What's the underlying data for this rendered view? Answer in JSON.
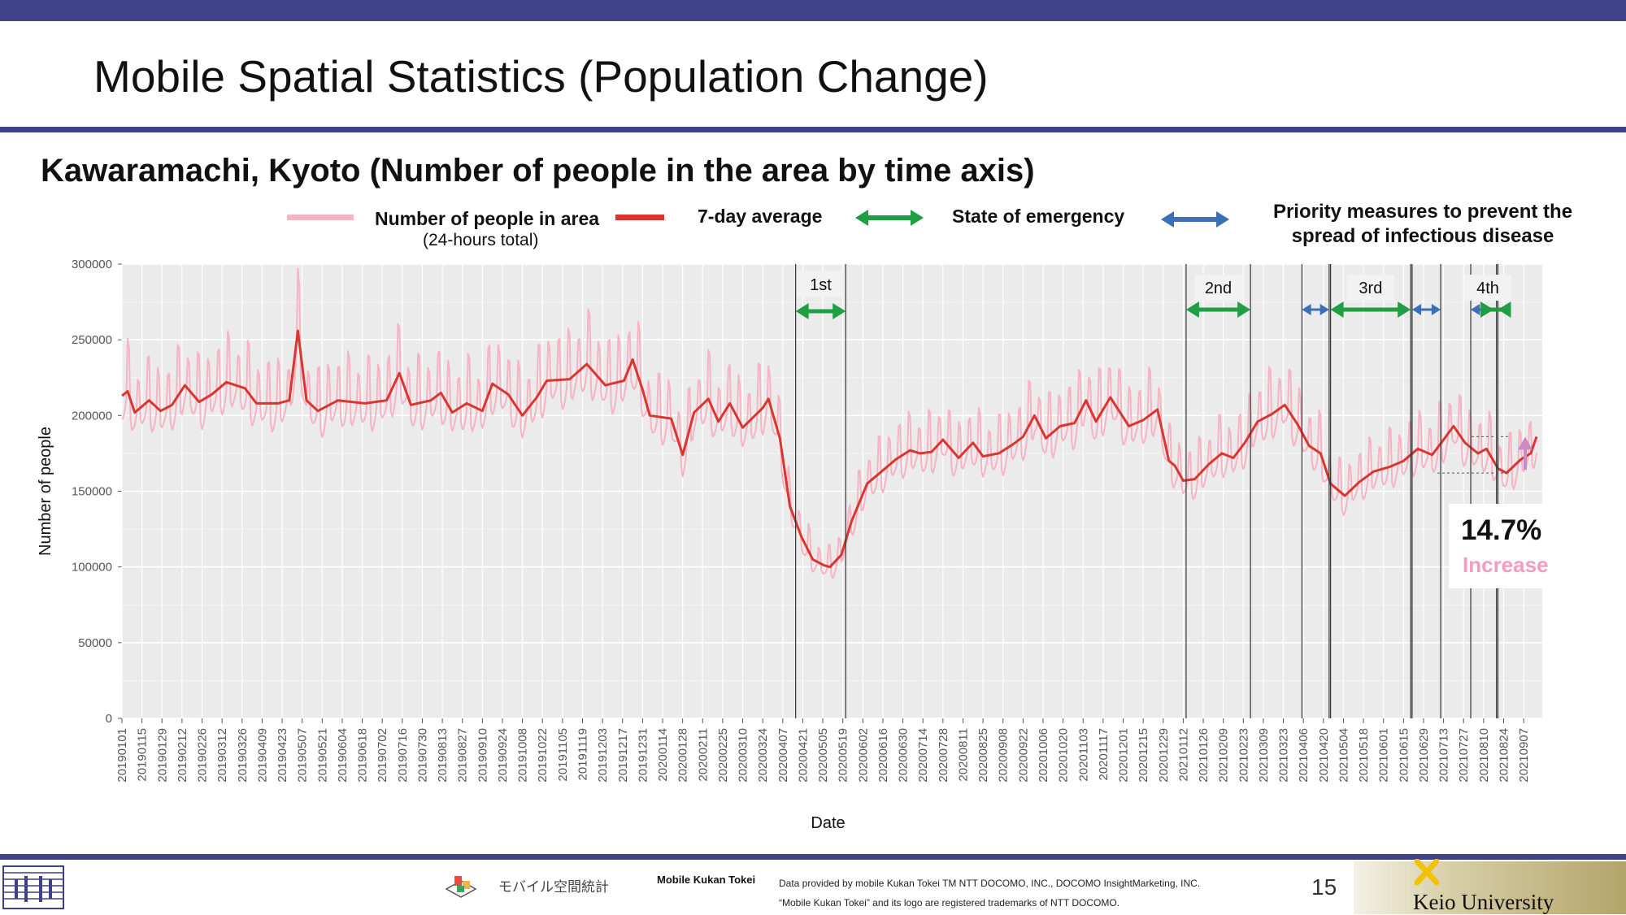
{
  "slide": {
    "title": "Mobile Spatial Statistics (Population Change)",
    "subtitle": "Kawaramachi, Kyoto (Number of people in the area by time axis)",
    "page_number": "15"
  },
  "legend": {
    "raw_label": "Number of people in area",
    "raw_sub": "(24-hours total)",
    "avg_label": "7-day average",
    "emergency_label": "State of emergency",
    "priority_label_1": "Priority measures to prevent the",
    "priority_label_2": "spread of infectious disease"
  },
  "annotation": {
    "percent": "14.7%",
    "word": "Increase"
  },
  "footer": {
    "brand_text": "モバイル空間統計",
    "mk_label": "Mobile Kukan Tokei",
    "note_1": "Data provided by mobile Kukan Tokei TM NTT DOCOMO, INC., DOCOMO InsightMarketing, INC.",
    "note_2": "“Mobile Kukan Tokei” and its logo are registered trademarks of NTT DOCOMO.",
    "university": "Keio University"
  },
  "colors": {
    "header_bar": "#3f4189",
    "raw_series": "#f6b3c4",
    "avg_series": "#d9362f",
    "emergency": "#1f9e44",
    "priority": "#3b6fb6",
    "panel_bg": "#ebebeb",
    "increase_arrow": "#c98ac7"
  },
  "chart_data": {
    "type": "line",
    "xlabel": "Date",
    "ylabel": "Number of people",
    "ylim": [
      0,
      300000
    ],
    "yticks": [
      0,
      50000,
      100000,
      150000,
      200000,
      250000,
      300000
    ],
    "ytick_labels": [
      "0",
      "50000",
      "100000",
      "150000",
      "200000",
      "250000",
      "300000"
    ],
    "x_start": "2019-01-01",
    "x_end": "2021-09-20",
    "grid": true,
    "legend_position": "top",
    "xtick_labels": [
      "20190101",
      "20190115",
      "20190129",
      "20190212",
      "20190226",
      "20190312",
      "20190326",
      "20190409",
      "20190423",
      "20190507",
      "20190521",
      "20190604",
      "20190618",
      "20190702",
      "20190716",
      "20190730",
      "20190813",
      "20190827",
      "20190910",
      "20190924",
      "20191008",
      "20191022",
      "20191105",
      "20191119",
      "20191203",
      "20191217",
      "20191231",
      "20200114",
      "20200128",
      "20200211",
      "20200225",
      "20200310",
      "20200324",
      "20200407",
      "20200421",
      "20200505",
      "20200519",
      "20200602",
      "20200616",
      "20200630",
      "20200714",
      "20200728",
      "20200811",
      "20200825",
      "20200908",
      "20200922",
      "20201006",
      "20201020",
      "20201103",
      "20201117",
      "20201201",
      "20201215",
      "20201229",
      "20210112",
      "20210126",
      "20210209",
      "20210223",
      "20210309",
      "20210323",
      "20210406",
      "20210420",
      "20210504",
      "20210518",
      "20210601",
      "20210615",
      "20210629",
      "20210713",
      "20210727",
      "20210810",
      "20210824",
      "20210907"
    ],
    "series": [
      {
        "name": "7-day average",
        "points": [
          [
            "2019-01-01",
            213000
          ],
          [
            "2019-01-05",
            216000
          ],
          [
            "2019-01-10",
            202000
          ],
          [
            "2019-01-20",
            210000
          ],
          [
            "2019-01-28",
            203000
          ],
          [
            "2019-02-05",
            207000
          ],
          [
            "2019-02-14",
            220000
          ],
          [
            "2019-02-24",
            209000
          ],
          [
            "2019-03-05",
            214000
          ],
          [
            "2019-03-15",
            222000
          ],
          [
            "2019-03-28",
            218000
          ],
          [
            "2019-04-05",
            208000
          ],
          [
            "2019-04-20",
            208000
          ],
          [
            "2019-04-28",
            210000
          ],
          [
            "2019-05-04",
            256000
          ],
          [
            "2019-05-10",
            210000
          ],
          [
            "2019-05-18",
            203000
          ],
          [
            "2019-06-01",
            210000
          ],
          [
            "2019-06-20",
            208000
          ],
          [
            "2019-07-05",
            210000
          ],
          [
            "2019-07-14",
            228000
          ],
          [
            "2019-07-22",
            207000
          ],
          [
            "2019-08-05",
            210000
          ],
          [
            "2019-08-12",
            215000
          ],
          [
            "2019-08-20",
            202000
          ],
          [
            "2019-08-30",
            208000
          ],
          [
            "2019-09-10",
            203000
          ],
          [
            "2019-09-17",
            221000
          ],
          [
            "2019-09-28",
            214000
          ],
          [
            "2019-10-08",
            200000
          ],
          [
            "2019-10-18",
            212000
          ],
          [
            "2019-10-25",
            223000
          ],
          [
            "2019-11-10",
            224000
          ],
          [
            "2019-11-22",
            234000
          ],
          [
            "2019-12-05",
            220000
          ],
          [
            "2019-12-18",
            223000
          ],
          [
            "2019-12-24",
            237000
          ],
          [
            "2019-12-31",
            217000
          ],
          [
            "2020-01-05",
            200000
          ],
          [
            "2020-01-20",
            198000
          ],
          [
            "2020-01-28",
            174000
          ],
          [
            "2020-02-05",
            202000
          ],
          [
            "2020-02-15",
            211000
          ],
          [
            "2020-02-22",
            196000
          ],
          [
            "2020-03-01",
            208000
          ],
          [
            "2020-03-10",
            192000
          ],
          [
            "2020-03-24",
            205000
          ],
          [
            "2020-03-28",
            211000
          ],
          [
            "2020-04-05",
            185000
          ],
          [
            "2020-04-12",
            140000
          ],
          [
            "2020-04-20",
            120000
          ],
          [
            "2020-04-28",
            105000
          ],
          [
            "2020-05-06",
            101000
          ],
          [
            "2020-05-10",
            100000
          ],
          [
            "2020-05-18",
            108000
          ],
          [
            "2020-05-25",
            130000
          ],
          [
            "2020-06-05",
            155000
          ],
          [
            "2020-06-15",
            163000
          ],
          [
            "2020-06-25",
            171000
          ],
          [
            "2020-07-05",
            177000
          ],
          [
            "2020-07-12",
            175000
          ],
          [
            "2020-07-20",
            176000
          ],
          [
            "2020-07-28",
            184000
          ],
          [
            "2020-08-08",
            172000
          ],
          [
            "2020-08-18",
            182000
          ],
          [
            "2020-08-25",
            173000
          ],
          [
            "2020-09-05",
            175000
          ],
          [
            "2020-09-15",
            181000
          ],
          [
            "2020-09-22",
            186000
          ],
          [
            "2020-09-30",
            200000
          ],
          [
            "2020-10-08",
            185000
          ],
          [
            "2020-10-18",
            193000
          ],
          [
            "2020-10-28",
            195000
          ],
          [
            "2020-11-05",
            210000
          ],
          [
            "2020-11-12",
            196000
          ],
          [
            "2020-11-22",
            212000
          ],
          [
            "2020-12-05",
            193000
          ],
          [
            "2020-12-15",
            197000
          ],
          [
            "2020-12-25",
            204000
          ],
          [
            "2021-01-02",
            170000
          ],
          [
            "2021-01-06",
            167000
          ],
          [
            "2021-01-12",
            157000
          ],
          [
            "2021-01-20",
            158000
          ],
          [
            "2021-01-30",
            168000
          ],
          [
            "2021-02-08",
            175000
          ],
          [
            "2021-02-16",
            172000
          ],
          [
            "2021-02-24",
            182000
          ],
          [
            "2021-03-05",
            196000
          ],
          [
            "2021-03-15",
            201000
          ],
          [
            "2021-03-24",
            207000
          ],
          [
            "2021-04-02",
            194000
          ],
          [
            "2021-04-10",
            180000
          ],
          [
            "2021-04-18",
            175000
          ],
          [
            "2021-04-25",
            155000
          ],
          [
            "2021-05-05",
            147000
          ],
          [
            "2021-05-15",
            156000
          ],
          [
            "2021-05-25",
            163000
          ],
          [
            "2021-06-05",
            166000
          ],
          [
            "2021-06-15",
            170000
          ],
          [
            "2021-06-25",
            178000
          ],
          [
            "2021-07-05",
            174000
          ],
          [
            "2021-07-13",
            184000
          ],
          [
            "2021-07-20",
            193000
          ],
          [
            "2021-07-28",
            182000
          ],
          [
            "2021-08-06",
            175000
          ],
          [
            "2021-08-12",
            178000
          ],
          [
            "2021-08-20",
            165000
          ],
          [
            "2021-08-26",
            162000
          ],
          [
            "2021-09-05",
            171000
          ],
          [
            "2021-09-12",
            175000
          ],
          [
            "2021-09-16",
            186000
          ]
        ]
      },
      {
        "name": "Number of people in area",
        "description": "daily values oscillating weekly around the 7-day average (weekend peaks)"
      }
    ],
    "periods": [
      {
        "label": "1st",
        "type": "emergency",
        "start": "2020-04-16",
        "end": "2020-05-21"
      },
      {
        "label": "2nd",
        "type": "emergency",
        "start": "2021-01-14",
        "end": "2021-02-28"
      },
      {
        "label": "",
        "type": "priority",
        "start": "2021-04-05",
        "end": "2021-04-24"
      },
      {
        "label": "3rd",
        "type": "emergency",
        "start": "2021-04-25",
        "end": "2021-06-20"
      },
      {
        "label": "",
        "type": "priority",
        "start": "2021-06-21",
        "end": "2021-07-11"
      },
      {
        "label": "",
        "type": "priority",
        "start": "2021-08-01",
        "end": "2021-08-19"
      },
      {
        "label": "4th",
        "type": "emergency",
        "start": "2021-08-20",
        "end": "2021-09-30"
      }
    ],
    "annotation": {
      "from": 162000,
      "to": 186000,
      "change_pct": 14.7
    }
  }
}
